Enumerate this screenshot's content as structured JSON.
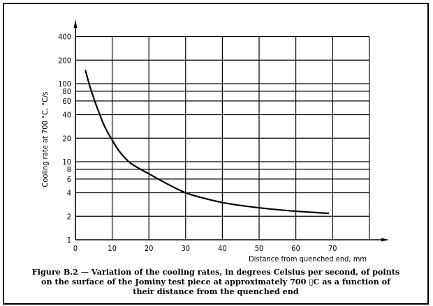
{
  "chart_data": {
    "type": "line",
    "title": "",
    "xlabel": "Distance from quenched end, mm",
    "ylabel": "Cooling rate at 700 °C, °C/s",
    "xlim": [
      0,
      80
    ],
    "ylim": [
      1,
      400
    ],
    "y_scale": "log",
    "grid": true,
    "x_ticks": [
      "0",
      "10",
      "20",
      "30",
      "40",
      "50",
      "60",
      "70"
    ],
    "y_ticks": [
      "1",
      "2",
      "4",
      "6",
      "8",
      "10",
      "20",
      "40",
      "60",
      "80",
      "100",
      "200",
      "400"
    ],
    "series": [
      {
        "x": [
          2.7,
          4,
          6,
          8,
          10,
          12,
          15,
          20,
          25,
          30,
          35,
          40,
          45,
          50,
          55,
          60,
          65,
          69
        ],
        "y": [
          150,
          90,
          48,
          28,
          19,
          13.5,
          9.6,
          7.0,
          5.2,
          4.0,
          3.4,
          3.0,
          2.75,
          2.57,
          2.43,
          2.32,
          2.24,
          2.18
        ]
      }
    ]
  },
  "caption": {
    "line1": "Figure B.2 — Variation of the cooling rates, in degrees Celsius per second, of points",
    "line2": "on the surface of the Jominy test piece at approximately 700 ▯C as a function of",
    "line3": "their distance from the quenched end"
  }
}
